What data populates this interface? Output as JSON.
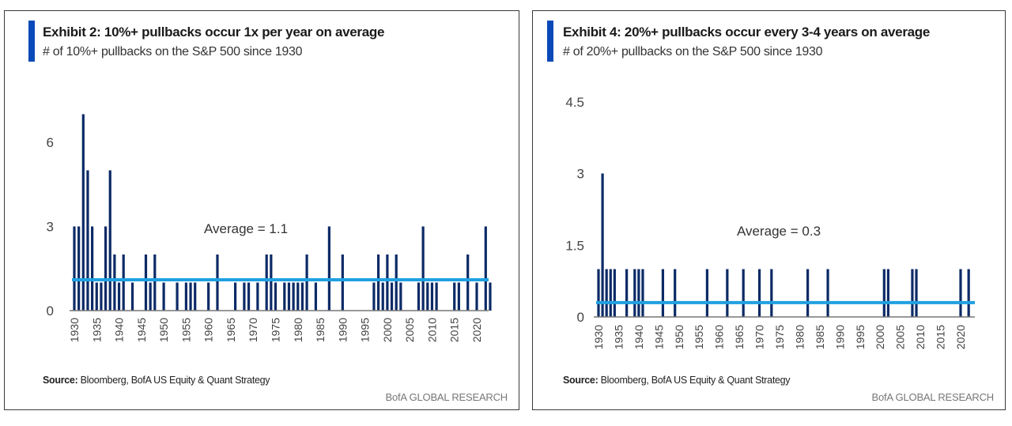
{
  "colors": {
    "bar": "#0b2a66",
    "average_line": "#1fa0e0",
    "accent": "#0a4ab8",
    "axis": "#777777"
  },
  "panels": [
    {
      "title": "Exhibit 2: 10%+ pullbacks occur 1x per year on average",
      "subtitle": "# of 10%+ pullbacks on the S&P 500 since 1930",
      "source_label": "Source:",
      "source_text": " Bloomberg, BofA US Equity & Quant Strategy",
      "brand": "BofA GLOBAL RESEARCH"
    },
    {
      "title": "Exhibit 4: 20%+ pullbacks occur every 3-4 years on average",
      "subtitle": "# of 20%+ pullbacks on the S&P 500 since 1930",
      "source_label": "Source:",
      "source_text": " Bloomberg, BofA US Equity & Quant Strategy",
      "brand": "BofA GLOBAL RESEARCH"
    }
  ],
  "chart_data": [
    {
      "type": "bar",
      "title": "Exhibit 2: 10%+ pullbacks occur 1x per year on average",
      "subtitle": "# of 10%+ pullbacks on the S&P 500 since 1930",
      "xlabel": "",
      "ylabel": "",
      "ylim": [
        0,
        7.5
      ],
      "yticks": [
        0,
        3,
        6
      ],
      "xlim": [
        1930,
        2023
      ],
      "xticks": [
        1930,
        1935,
        1940,
        1945,
        1950,
        1955,
        1960,
        1965,
        1970,
        1975,
        1980,
        1985,
        1990,
        1995,
        2000,
        2005,
        2010,
        2015,
        2020
      ],
      "average": 1.1,
      "average_label": "Average = 1.1",
      "grid": false,
      "points": [
        [
          1930,
          3
        ],
        [
          1931,
          3
        ],
        [
          1932,
          7
        ],
        [
          1933,
          5
        ],
        [
          1934,
          3
        ],
        [
          1935,
          1
        ],
        [
          1936,
          1
        ],
        [
          1937,
          3
        ],
        [
          1938,
          5
        ],
        [
          1939,
          2
        ],
        [
          1940,
          1
        ],
        [
          1941,
          2
        ],
        [
          1943,
          1
        ],
        [
          1946,
          2
        ],
        [
          1947,
          1
        ],
        [
          1948,
          2
        ],
        [
          1950,
          1
        ],
        [
          1953,
          1
        ],
        [
          1955,
          1
        ],
        [
          1956,
          1
        ],
        [
          1957,
          1
        ],
        [
          1960,
          1
        ],
        [
          1962,
          2
        ],
        [
          1966,
          1
        ],
        [
          1968,
          1
        ],
        [
          1969,
          1
        ],
        [
          1971,
          1
        ],
        [
          1973,
          2
        ],
        [
          1974,
          2
        ],
        [
          1975,
          1
        ],
        [
          1977,
          1
        ],
        [
          1978,
          1
        ],
        [
          1979,
          1
        ],
        [
          1980,
          1
        ],
        [
          1981,
          1
        ],
        [
          1982,
          2
        ],
        [
          1984,
          1
        ],
        [
          1987,
          3
        ],
        [
          1990,
          2
        ],
        [
          1997,
          1
        ],
        [
          1998,
          2
        ],
        [
          1999,
          1
        ],
        [
          2000,
          2
        ],
        [
          2001,
          1
        ],
        [
          2002,
          2
        ],
        [
          2003,
          1
        ],
        [
          2007,
          1
        ],
        [
          2008,
          3
        ],
        [
          2009,
          1
        ],
        [
          2010,
          1
        ],
        [
          2011,
          1
        ],
        [
          2015,
          1
        ],
        [
          2016,
          1
        ],
        [
          2018,
          2
        ],
        [
          2020,
          1
        ],
        [
          2022,
          3
        ],
        [
          2023,
          1
        ]
      ]
    },
    {
      "type": "bar",
      "title": "Exhibit 4: 20%+ pullbacks occur every 3-4 years on average",
      "subtitle": "# of 20%+ pullbacks on the S&P 500 since 1930",
      "xlabel": "",
      "ylabel": "",
      "ylim": [
        0,
        4.5
      ],
      "yticks": [
        0,
        1.5,
        3,
        4.5
      ],
      "xlim": [
        1930,
        2023
      ],
      "xticks": [
        1930,
        1935,
        1940,
        1945,
        1950,
        1955,
        1960,
        1965,
        1970,
        1975,
        1980,
        1985,
        1990,
        1995,
        2000,
        2005,
        2010,
        2015,
        2020
      ],
      "average": 0.3,
      "average_label": "Average = 0.3",
      "grid": false,
      "points": [
        [
          1930,
          1
        ],
        [
          1931,
          3
        ],
        [
          1932,
          1
        ],
        [
          1933,
          1
        ],
        [
          1934,
          1
        ],
        [
          1937,
          1
        ],
        [
          1939,
          1
        ],
        [
          1940,
          1
        ],
        [
          1941,
          1
        ],
        [
          1946,
          1
        ],
        [
          1949,
          1
        ],
        [
          1957,
          1
        ],
        [
          1962,
          1
        ],
        [
          1966,
          1
        ],
        [
          1970,
          1
        ],
        [
          1973,
          1
        ],
        [
          1982,
          1
        ],
        [
          1987,
          1
        ],
        [
          2001,
          1
        ],
        [
          2002,
          1
        ],
        [
          2008,
          1
        ],
        [
          2009,
          1
        ],
        [
          2020,
          1
        ],
        [
          2022,
          1
        ]
      ]
    }
  ]
}
